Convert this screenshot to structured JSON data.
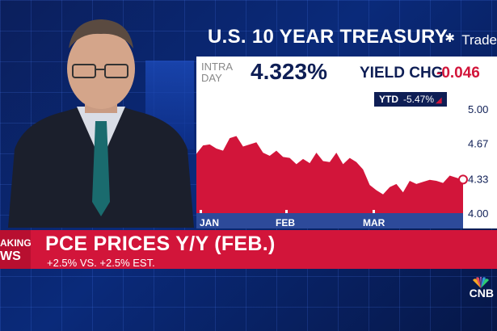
{
  "panel": {
    "title": "U.S. 10 YEAR TREASURY",
    "source_logo": "Trade",
    "intra_label_1": "INTRA",
    "intra_label_2": "DAY",
    "yield_value": "4.323%",
    "yield_change_label": "YIELD CHG",
    "yield_change_value": "-0.046",
    "ytd_label": "YTD",
    "ytd_value": "-5.47%",
    "colors": {
      "positive_fill": "#d2153a",
      "navy": "#0e1e55"
    }
  },
  "chart_data": {
    "type": "area",
    "title": "",
    "xlabel": "",
    "ylabel": "",
    "x_ticks": [
      "JAN",
      "FEB",
      "MAR"
    ],
    "y_ticks": [
      4.0,
      4.33,
      4.67,
      5.0
    ],
    "ylim": [
      4.0,
      5.0
    ],
    "grid": false,
    "legend": "none",
    "series": [
      {
        "values": [
          4.57,
          4.65,
          4.66,
          4.62,
          4.6,
          4.72,
          4.74,
          4.64,
          4.66,
          4.68,
          4.58,
          4.55,
          4.6,
          4.54,
          4.53,
          4.47,
          4.52,
          4.48,
          4.58,
          4.5,
          4.49,
          4.58,
          4.47,
          4.53,
          4.49,
          4.42,
          4.27,
          4.22,
          4.18,
          4.25,
          4.28,
          4.2,
          4.31,
          4.28,
          4.3,
          4.32,
          4.31,
          4.29,
          4.36,
          4.34,
          4.32
        ]
      }
    ],
    "current_value": 4.323
  },
  "lower_third": {
    "tag_line1": "AKING",
    "tag_line2": "WS",
    "headline": "PCE PRICES Y/Y (FEB.)",
    "subhead": "+2.5% VS. +2.5% EST.",
    "network": "CNB"
  }
}
